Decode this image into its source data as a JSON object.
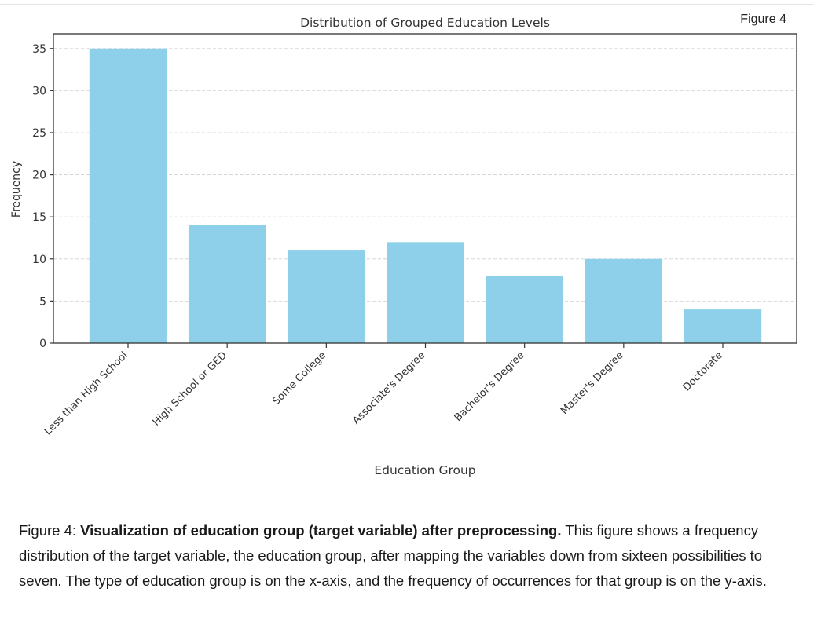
{
  "figure_label": "Figure 4",
  "chart_data": {
    "type": "bar",
    "title": "Distribution of Grouped Education Levels",
    "xlabel": "Education Group",
    "ylabel": "Frequency",
    "categories": [
      "Less than High School",
      "High School or GED",
      "Some College",
      "Associate's Degree",
      "Bachelor's Degree",
      "Master's Degree",
      "Doctorate"
    ],
    "values": [
      35,
      14,
      11,
      12,
      8,
      10,
      4
    ],
    "ylim": [
      0,
      36.75
    ],
    "yticks": [
      "0",
      "5",
      "10",
      "15",
      "20",
      "25",
      "30",
      "35"
    ],
    "grid": "horizontal dashed",
    "bar_color": "#8ecfe9"
  },
  "caption": {
    "prefix": "Figure 4: ",
    "bold": "Visualization of education group (target variable) after preprocessing.",
    "text": " This figure shows a frequency distribution of the target variable, the education group, after mapping the variables down from sixteen possibilities to seven. The type of education group is on the x-axis, and the frequency of occurrences for that group is on the y-axis."
  }
}
